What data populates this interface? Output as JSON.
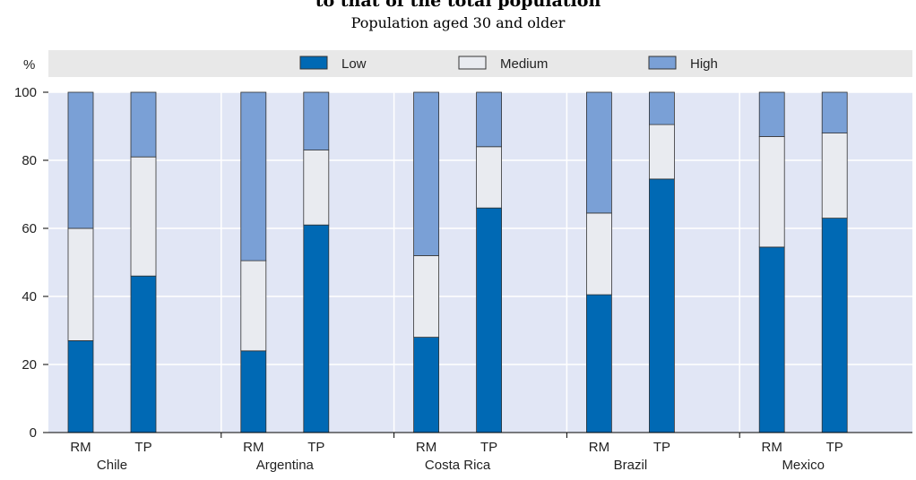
{
  "title_fragment": "to that of the total population",
  "subtitle": "Population aged 30 and older",
  "chart_data": {
    "type": "bar",
    "stacked": true,
    "ylabel": "%",
    "ylim": [
      0,
      100
    ],
    "yticks": [
      0,
      20,
      40,
      60,
      80,
      100
    ],
    "legend_position": "top",
    "grid": true,
    "colors": {
      "Low": "#0069b4",
      "Medium": "#e9ebf0",
      "High": "#7aa0d6",
      "plot_bg": "#e1e6f5",
      "legend_bg": "#e8e8e8"
    },
    "groups": [
      {
        "name": "Chile",
        "bars": [
          {
            "label": "RM",
            "Low": 27,
            "Medium": 33,
            "High": 40
          },
          {
            "label": "TP",
            "Low": 46,
            "Medium": 35,
            "High": 19
          }
        ]
      },
      {
        "name": "Argentina",
        "bars": [
          {
            "label": "RM",
            "Low": 24,
            "Medium": 26.5,
            "High": 49.5
          },
          {
            "label": "TP",
            "Low": 61,
            "Medium": 22,
            "High": 17
          }
        ]
      },
      {
        "name": "Costa Rica",
        "bars": [
          {
            "label": "RM",
            "Low": 28,
            "Medium": 24,
            "High": 48
          },
          {
            "label": "TP",
            "Low": 66,
            "Medium": 18,
            "High": 16
          }
        ]
      },
      {
        "name": "Brazil",
        "bars": [
          {
            "label": "RM",
            "Low": 40.5,
            "Medium": 24,
            "High": 35.5
          },
          {
            "label": "TP",
            "Low": 74.5,
            "Medium": 16,
            "High": 9.5
          }
        ]
      },
      {
        "name": "Mexico",
        "bars": [
          {
            "label": "RM",
            "Low": 54.5,
            "Medium": 32.5,
            "High": 13
          },
          {
            "label": "TP",
            "Low": 63,
            "Medium": 25,
            "High": 12
          }
        ]
      }
    ],
    "series": [
      "Low",
      "Medium",
      "High"
    ]
  }
}
